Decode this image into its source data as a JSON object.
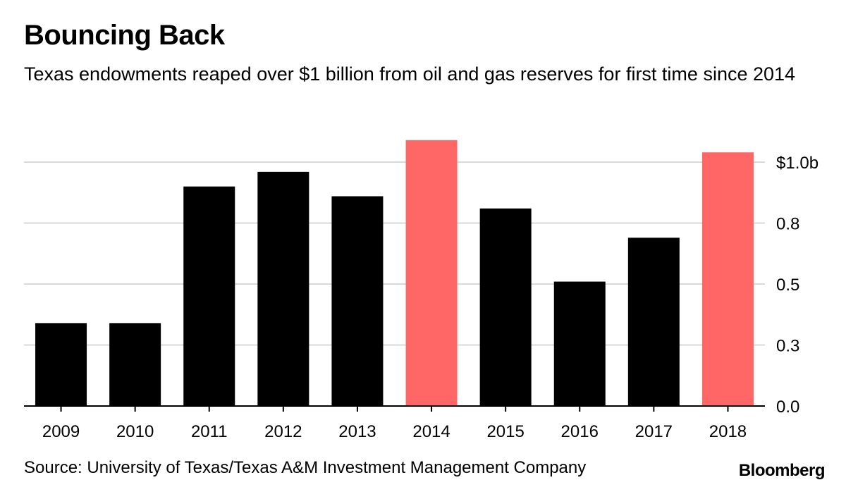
{
  "chart_data": {
    "type": "bar",
    "title": "Bouncing Back",
    "subtitle": "Texas endowments reaped over $1 billion from oil and gas reserves for first time since 2014",
    "categories": [
      "2009",
      "2010",
      "2011",
      "2012",
      "2013",
      "2014",
      "2015",
      "2016",
      "2017",
      "2018"
    ],
    "values": [
      0.34,
      0.34,
      0.9,
      0.96,
      0.86,
      1.09,
      0.81,
      0.51,
      0.69,
      1.04
    ],
    "highlight": [
      false,
      false,
      false,
      false,
      false,
      true,
      false,
      false,
      false,
      true
    ],
    "colors": {
      "default": "#000000",
      "highlight": "#ff6666",
      "grid": "#d9d9d9",
      "axis": "#000000"
    },
    "ylim": [
      0,
      1.1
    ],
    "y_ticks": [
      0,
      0.25,
      0.5,
      0.75,
      1.0
    ],
    "y_tick_labels": [
      "0.0",
      "0.3",
      "0.5",
      "0.8",
      "$1.0b"
    ],
    "y_axis_position": "right",
    "grid": true,
    "legend": "none",
    "xlabel": "",
    "ylabel": ""
  },
  "footer": {
    "source": "Source: University of Texas/Texas A&M Investment Management Company",
    "brand": "Bloomberg"
  }
}
